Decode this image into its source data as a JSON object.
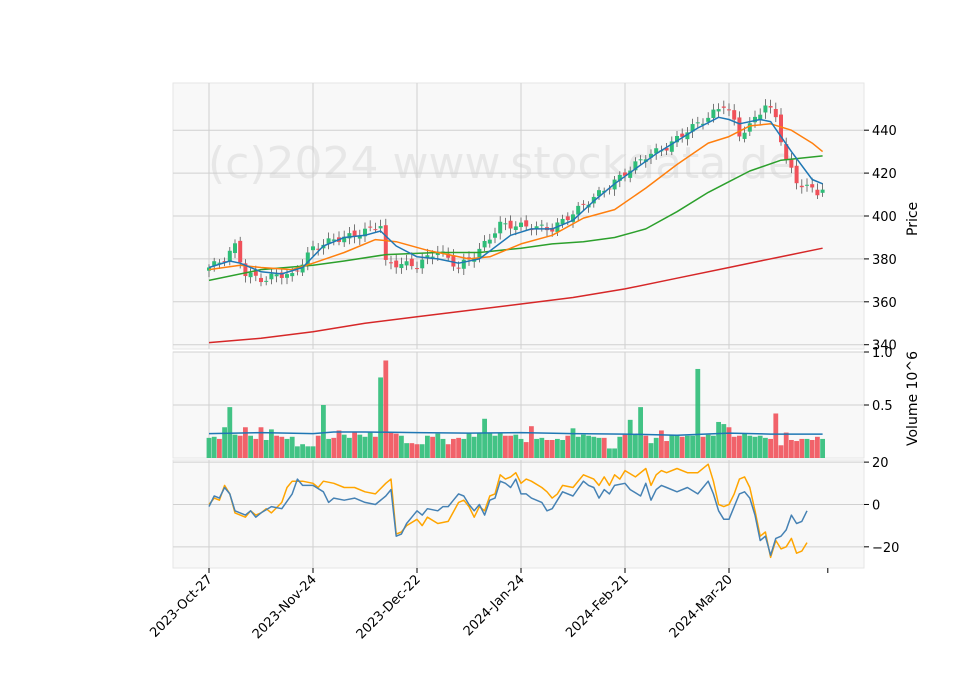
{
  "chart_data": {
    "type": "candlestick",
    "watermark": "(c)2024 www.stockdata.de",
    "colors": {
      "up": "#2ebd78",
      "down": "#f0515a",
      "ma_fast": "#1f77b4",
      "ma_mid": "#ff7f0e",
      "ma_slow": "#2ca02c",
      "ma_long": "#d62728",
      "vol_ma": "#1f77b4",
      "osc_a": "#4682b4",
      "osc_b": "#ffa500",
      "panel_bg": "#f8f8f8",
      "grid": "#d0d0d0"
    },
    "x_tick_labels": [
      "2023-Oct-27",
      "2023-Nov-24",
      "2023-Dec-22",
      "2024-Jan-24",
      "2024-Feb-21",
      "2024-Mar-20"
    ],
    "x_tick_index": [
      0,
      20,
      40,
      60,
      80,
      100
    ],
    "n_bars": 119,
    "price_panel": {
      "ylabel": "Price",
      "ylim": [
        338,
        462
      ],
      "yticks": [
        340,
        360,
        380,
        400,
        420,
        440
      ],
      "close_anchors": [
        [
          0,
          376
        ],
        [
          3,
          380
        ],
        [
          5,
          386
        ],
        [
          7,
          373
        ],
        [
          11,
          370
        ],
        [
          13,
          373
        ],
        [
          16,
          372
        ],
        [
          20,
          385
        ],
        [
          24,
          389
        ],
        [
          28,
          391
        ],
        [
          33,
          396
        ],
        [
          34,
          378
        ],
        [
          40,
          377
        ],
        [
          44,
          384
        ],
        [
          48,
          376
        ],
        [
          52,
          384
        ],
        [
          56,
          396
        ],
        [
          62,
          395
        ],
        [
          66,
          394
        ],
        [
          72,
          405
        ],
        [
          78,
          416
        ],
        [
          84,
          428
        ],
        [
          88,
          432
        ],
        [
          92,
          440
        ],
        [
          96,
          446
        ],
        [
          99,
          452
        ],
        [
          100,
          449
        ],
        [
          102,
          438
        ],
        [
          104,
          442
        ],
        [
          107,
          452
        ],
        [
          109,
          446
        ],
        [
          111,
          426
        ],
        [
          113,
          416
        ],
        [
          117,
          411
        ],
        [
          118,
          413
        ]
      ],
      "ma_fast": [
        [
          0,
          376
        ],
        [
          4,
          379
        ],
        [
          6,
          378
        ],
        [
          10,
          374
        ],
        [
          14,
          373
        ],
        [
          18,
          376
        ],
        [
          22,
          386
        ],
        [
          26,
          390
        ],
        [
          30,
          391
        ],
        [
          33,
          393
        ],
        [
          36,
          386
        ],
        [
          40,
          381
        ],
        [
          44,
          380
        ],
        [
          48,
          378
        ],
        [
          52,
          380
        ],
        [
          58,
          391
        ],
        [
          62,
          394
        ],
        [
          66,
          394
        ],
        [
          70,
          398
        ],
        [
          74,
          407
        ],
        [
          78,
          415
        ],
        [
          82,
          422
        ],
        [
          86,
          429
        ],
        [
          90,
          435
        ],
        [
          94,
          441
        ],
        [
          98,
          446
        ],
        [
          100,
          445
        ],
        [
          102,
          443
        ],
        [
          106,
          445
        ],
        [
          108,
          444
        ],
        [
          112,
          430
        ],
        [
          116,
          417
        ],
        [
          118,
          415
        ]
      ],
      "ma_mid": [
        [
          0,
          375
        ],
        [
          6,
          377
        ],
        [
          10,
          376
        ],
        [
          16,
          375
        ],
        [
          20,
          378
        ],
        [
          26,
          383
        ],
        [
          32,
          389
        ],
        [
          36,
          388
        ],
        [
          42,
          384
        ],
        [
          50,
          380
        ],
        [
          54,
          381
        ],
        [
          60,
          387
        ],
        [
          66,
          391
        ],
        [
          72,
          399
        ],
        [
          78,
          403
        ],
        [
          84,
          413
        ],
        [
          90,
          424
        ],
        [
          96,
          434
        ],
        [
          100,
          437
        ],
        [
          104,
          442
        ],
        [
          108,
          443
        ],
        [
          112,
          440
        ],
        [
          116,
          434
        ],
        [
          118,
          430
        ]
      ],
      "ma_slow": [
        [
          0,
          370
        ],
        [
          10,
          375
        ],
        [
          20,
          377
        ],
        [
          26,
          379
        ],
        [
          34,
          382
        ],
        [
          44,
          383
        ],
        [
          52,
          383
        ],
        [
          60,
          385
        ],
        [
          66,
          387
        ],
        [
          72,
          388
        ],
        [
          78,
          390
        ],
        [
          84,
          394
        ],
        [
          90,
          402
        ],
        [
          96,
          411
        ],
        [
          100,
          416
        ],
        [
          104,
          421
        ],
        [
          110,
          426
        ],
        [
          118,
          428
        ]
      ],
      "ma_long": [
        [
          0,
          341
        ],
        [
          10,
          343
        ],
        [
          20,
          346
        ],
        [
          30,
          350
        ],
        [
          40,
          353
        ],
        [
          50,
          356
        ],
        [
          60,
          359
        ],
        [
          70,
          362
        ],
        [
          80,
          366
        ],
        [
          90,
          371
        ],
        [
          100,
          376
        ],
        [
          106,
          379
        ],
        [
          112,
          382
        ],
        [
          118,
          385
        ]
      ]
    },
    "volume_panel": {
      "ylabel": "Volume  10^6",
      "ylim": [
        0,
        1.0
      ],
      "yticks": [
        0.5,
        1.0
      ],
      "bars": [
        0.19,
        0.2,
        0.18,
        0.29,
        0.48,
        0.22,
        0.21,
        0.29,
        0.21,
        0.18,
        0.29,
        0.17,
        0.27,
        0.21,
        0.2,
        0.18,
        0.2,
        0.11,
        0.13,
        0.11,
        0.11,
        0.21,
        0.5,
        0.18,
        0.19,
        0.26,
        0.22,
        0.19,
        0.25,
        0.22,
        0.2,
        0.24,
        0.2,
        0.76,
        0.92,
        0.24,
        0.23,
        0.21,
        0.14,
        0.14,
        0.13,
        0.13,
        0.21,
        0.2,
        0.23,
        0.18,
        0.13,
        0.18,
        0.19,
        0.18,
        0.24,
        0.2,
        0.24,
        0.37,
        0.24,
        0.21,
        0.24,
        0.21,
        0.21,
        0.22,
        0.18,
        0.15,
        0.3,
        0.18,
        0.19,
        0.17,
        0.17,
        0.18,
        0.17,
        0.21,
        0.28,
        0.2,
        0.22,
        0.21,
        0.2,
        0.19,
        0.19,
        0.09,
        0.09,
        0.2,
        0.22,
        0.36,
        0.22,
        0.48,
        0.21,
        0.14,
        0.19,
        0.26,
        0.16,
        0.22,
        0.22,
        0.2,
        0.21,
        0.21,
        0.84,
        0.2,
        0.22,
        0.21,
        0.34,
        0.32,
        0.29,
        0.2,
        0.21,
        0.23,
        0.21,
        0.2,
        0.21,
        0.19,
        0.18,
        0.42,
        0.12,
        0.24,
        0.17,
        0.16,
        0.18,
        0.18,
        0.17,
        0.2,
        0.18
      ],
      "ma": [
        [
          0,
          0.23
        ],
        [
          10,
          0.24
        ],
        [
          20,
          0.23
        ],
        [
          24,
          0.245
        ],
        [
          30,
          0.245
        ],
        [
          40,
          0.24
        ],
        [
          50,
          0.235
        ],
        [
          60,
          0.24
        ],
        [
          70,
          0.23
        ],
        [
          80,
          0.225
        ],
        [
          90,
          0.215
        ],
        [
          100,
          0.235
        ],
        [
          108,
          0.225
        ],
        [
          118,
          0.225
        ]
      ]
    },
    "oscillator_panel": {
      "ylim": [
        -30,
        21
      ],
      "yticks": [
        -20,
        0,
        20
      ],
      "line_a": [
        [
          0,
          -1
        ],
        [
          1,
          4
        ],
        [
          2,
          3
        ],
        [
          3,
          8
        ],
        [
          4,
          5
        ],
        [
          5,
          -3
        ],
        [
          7,
          -5
        ],
        [
          8,
          -3
        ],
        [
          9,
          -6
        ],
        [
          10,
          -4
        ],
        [
          12,
          -1
        ],
        [
          14,
          -2
        ],
        [
          16,
          5
        ],
        [
          17,
          12
        ],
        [
          18,
          9
        ],
        [
          20,
          9
        ],
        [
          22,
          6
        ],
        [
          23,
          1
        ],
        [
          24,
          3
        ],
        [
          26,
          2
        ],
        [
          28,
          3
        ],
        [
          30,
          1
        ],
        [
          32,
          0
        ],
        [
          34,
          4
        ],
        [
          35,
          7
        ],
        [
          36,
          -15
        ],
        [
          37,
          -14
        ],
        [
          38,
          -9
        ],
        [
          39,
          -6
        ],
        [
          40,
          -3
        ],
        [
          41,
          -5
        ],
        [
          42,
          -2
        ],
        [
          44,
          -3
        ],
        [
          45,
          -1
        ],
        [
          46,
          -1
        ],
        [
          47,
          2
        ],
        [
          48,
          5
        ],
        [
          49,
          4
        ],
        [
          50,
          0
        ],
        [
          51,
          -3
        ],
        [
          52,
          0
        ],
        [
          53,
          -5
        ],
        [
          54,
          2
        ],
        [
          55,
          3
        ],
        [
          56,
          11
        ],
        [
          57,
          10
        ],
        [
          58,
          8
        ],
        [
          59,
          12
        ],
        [
          60,
          5
        ],
        [
          61,
          5
        ],
        [
          62,
          3
        ],
        [
          64,
          1
        ],
        [
          65,
          -3
        ],
        [
          66,
          -2
        ],
        [
          67,
          2
        ],
        [
          68,
          6
        ],
        [
          70,
          4
        ],
        [
          72,
          11
        ],
        [
          73,
          9
        ],
        [
          74,
          8
        ],
        [
          75,
          3
        ],
        [
          76,
          7
        ],
        [
          77,
          5
        ],
        [
          78,
          9
        ],
        [
          80,
          10
        ],
        [
          81,
          7
        ],
        [
          83,
          4
        ],
        [
          84,
          10
        ],
        [
          85,
          2
        ],
        [
          86,
          7
        ],
        [
          87,
          9
        ],
        [
          88,
          8
        ],
        [
          90,
          6
        ],
        [
          92,
          8
        ],
        [
          94,
          5
        ],
        [
          96,
          11
        ],
        [
          97,
          5
        ],
        [
          98,
          -3
        ],
        [
          99,
          -7
        ],
        [
          100,
          -7
        ],
        [
          101,
          -1
        ],
        [
          102,
          5
        ],
        [
          103,
          6
        ],
        [
          104,
          3
        ],
        [
          105,
          -5
        ],
        [
          106,
          -17
        ],
        [
          107,
          -15
        ],
        [
          108,
          -24
        ],
        [
          109,
          -16
        ],
        [
          110,
          -15
        ],
        [
          111,
          -12
        ],
        [
          112,
          -5
        ],
        [
          113,
          -9
        ],
        [
          114,
          -8
        ],
        [
          115,
          -3
        ]
      ],
      "line_b": [
        [
          0,
          0
        ],
        [
          1,
          3
        ],
        [
          2,
          2
        ],
        [
          3,
          9
        ],
        [
          4,
          5
        ],
        [
          5,
          -4
        ],
        [
          7,
          -6
        ],
        [
          8,
          -3
        ],
        [
          9,
          -5
        ],
        [
          10,
          -4
        ],
        [
          11,
          -2
        ],
        [
          12,
          -4
        ],
        [
          14,
          1
        ],
        [
          15,
          8
        ],
        [
          16,
          11
        ],
        [
          18,
          11
        ],
        [
          20,
          10
        ],
        [
          21,
          8
        ],
        [
          22,
          11
        ],
        [
          24,
          10
        ],
        [
          26,
          8
        ],
        [
          28,
          8
        ],
        [
          30,
          6
        ],
        [
          32,
          5
        ],
        [
          34,
          10
        ],
        [
          35,
          12
        ],
        [
          36,
          -14
        ],
        [
          37,
          -13
        ],
        [
          38,
          -10
        ],
        [
          40,
          -7
        ],
        [
          41,
          -10
        ],
        [
          42,
          -6
        ],
        [
          44,
          -9
        ],
        [
          46,
          -8
        ],
        [
          48,
          1
        ],
        [
          49,
          2
        ],
        [
          50,
          -1
        ],
        [
          51,
          -6
        ],
        [
          52,
          -1
        ],
        [
          53,
          -3
        ],
        [
          54,
          4
        ],
        [
          55,
          5
        ],
        [
          56,
          14
        ],
        [
          57,
          12
        ],
        [
          58,
          13
        ],
        [
          59,
          15
        ],
        [
          60,
          10
        ],
        [
          61,
          12
        ],
        [
          62,
          11
        ],
        [
          64,
          8
        ],
        [
          65,
          6
        ],
        [
          66,
          3
        ],
        [
          67,
          5
        ],
        [
          68,
          9
        ],
        [
          70,
          8
        ],
        [
          72,
          14
        ],
        [
          73,
          13
        ],
        [
          74,
          12
        ],
        [
          75,
          9
        ],
        [
          76,
          13
        ],
        [
          77,
          9
        ],
        [
          78,
          14
        ],
        [
          79,
          12
        ],
        [
          80,
          16
        ],
        [
          82,
          13
        ],
        [
          84,
          17
        ],
        [
          85,
          9
        ],
        [
          86,
          14
        ],
        [
          87,
          16
        ],
        [
          88,
          15
        ],
        [
          90,
          17
        ],
        [
          92,
          15
        ],
        [
          94,
          15
        ],
        [
          96,
          19
        ],
        [
          97,
          11
        ],
        [
          98,
          0
        ],
        [
          99,
          -1
        ],
        [
          100,
          0
        ],
        [
          101,
          5
        ],
        [
          102,
          12
        ],
        [
          103,
          13
        ],
        [
          104,
          8
        ],
        [
          105,
          -3
        ],
        [
          106,
          -15
        ],
        [
          107,
          -13
        ],
        [
          108,
          -25
        ],
        [
          109,
          -17
        ],
        [
          110,
          -21
        ],
        [
          111,
          -20
        ],
        [
          112,
          -16
        ],
        [
          113,
          -23
        ],
        [
          114,
          -22
        ],
        [
          115,
          -18
        ]
      ]
    }
  }
}
